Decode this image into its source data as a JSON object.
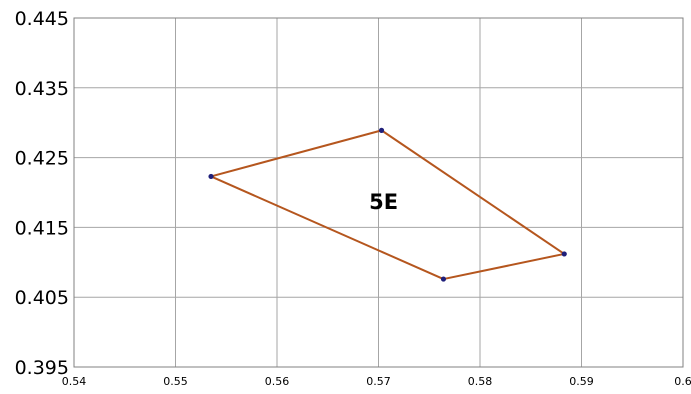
{
  "chart_data": {
    "type": "scatter",
    "title": "",
    "xlabel": "",
    "ylabel": "",
    "xlim": [
      0.54,
      0.6
    ],
    "ylim": [
      0.395,
      0.445
    ],
    "xticks": [
      0.54,
      0.55,
      0.56,
      0.57,
      0.58,
      0.59,
      0.6
    ],
    "xtick_labels": [
      "0.54",
      "0.55",
      "0.56",
      "0.57",
      "0.58",
      "0.59",
      "0.6"
    ],
    "yticks": [
      0.395,
      0.405,
      0.415,
      0.425,
      0.435,
      0.445
    ],
    "ytick_labels": [
      "0.395",
      "0.405",
      "0.415",
      "0.425",
      "0.435",
      "0.445"
    ],
    "grid": true,
    "series": [
      {
        "closed": true,
        "points": [
          {
            "x": 0.5535,
            "y": 0.4223
          },
          {
            "x": 0.5703,
            "y": 0.4289
          },
          {
            "x": 0.5883,
            "y": 0.4112
          },
          {
            "x": 0.5764,
            "y": 0.4076
          }
        ],
        "line_color": "#b5561e",
        "marker_color": "#1f1f7a"
      }
    ],
    "annotations": [
      {
        "text": "5E",
        "x": 0.5705,
        "y": 0.4188
      }
    ]
  }
}
